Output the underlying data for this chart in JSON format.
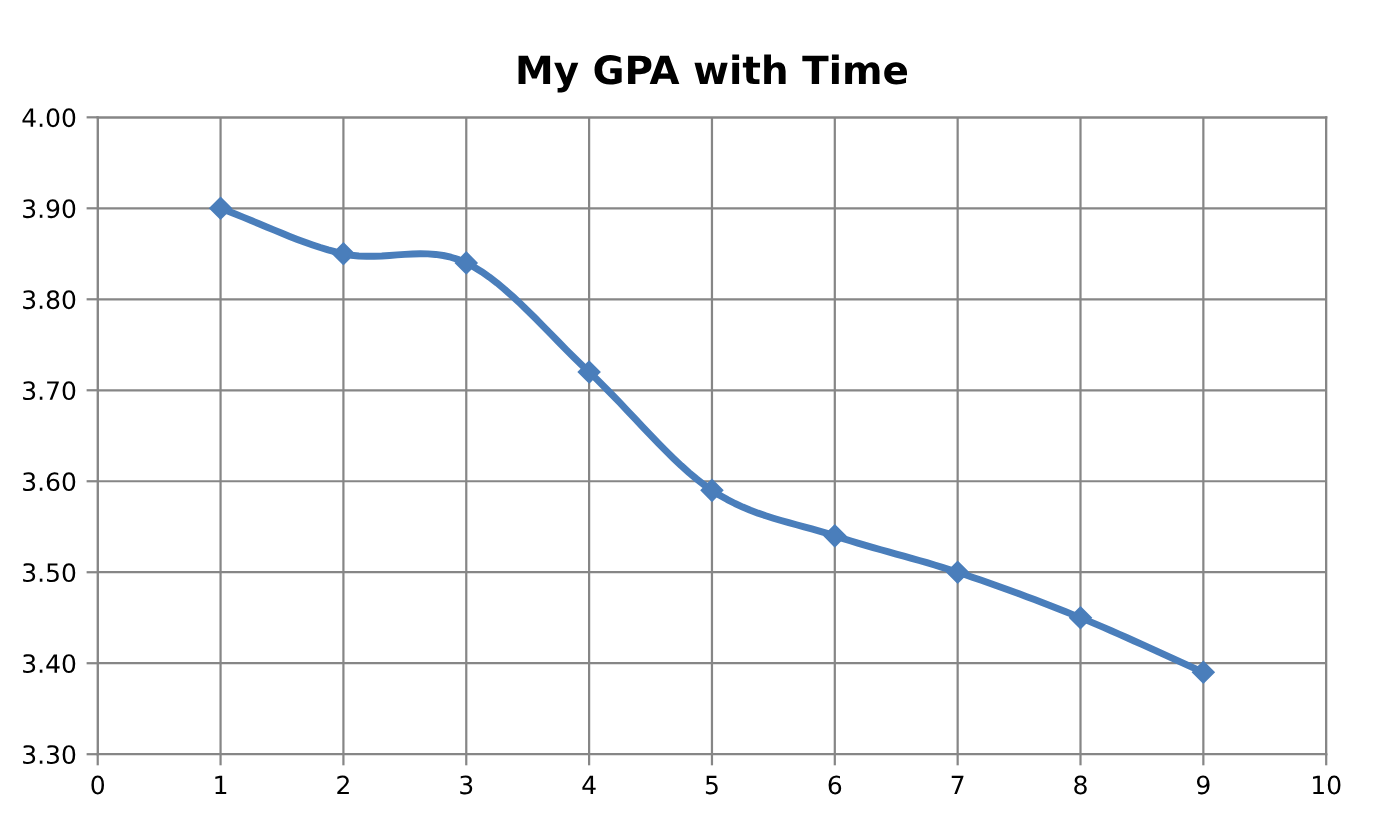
{
  "chart_data": {
    "type": "line",
    "title": "My GPA with Time",
    "x": [
      1,
      2,
      3,
      4,
      5,
      6,
      7,
      8,
      9
    ],
    "series": [
      {
        "color": "#4a7ebb",
        "values": [
          3.9,
          3.85,
          3.84,
          3.72,
          3.59,
          3.54,
          3.5,
          3.45,
          3.39
        ]
      }
    ],
    "xlim": [
      0,
      10
    ],
    "xticks": [
      0,
      1,
      2,
      3,
      4,
      5,
      6,
      7,
      8,
      9,
      10
    ],
    "ylim": [
      3.3,
      4.0
    ],
    "yticks": [
      {
        "value": 3.3,
        "label": "3.30"
      },
      {
        "value": 3.4,
        "label": "3.40"
      },
      {
        "value": 3.5,
        "label": "3.50"
      },
      {
        "value": 3.6,
        "label": "3.60"
      },
      {
        "value": 3.7,
        "label": "3.70"
      },
      {
        "value": 3.8,
        "label": "3.80"
      },
      {
        "value": 3.9,
        "label": "3.90"
      },
      {
        "value": 4.0,
        "label": "4.00"
      }
    ],
    "grid": true,
    "marker": "diamond",
    "line_style": "solid"
  }
}
